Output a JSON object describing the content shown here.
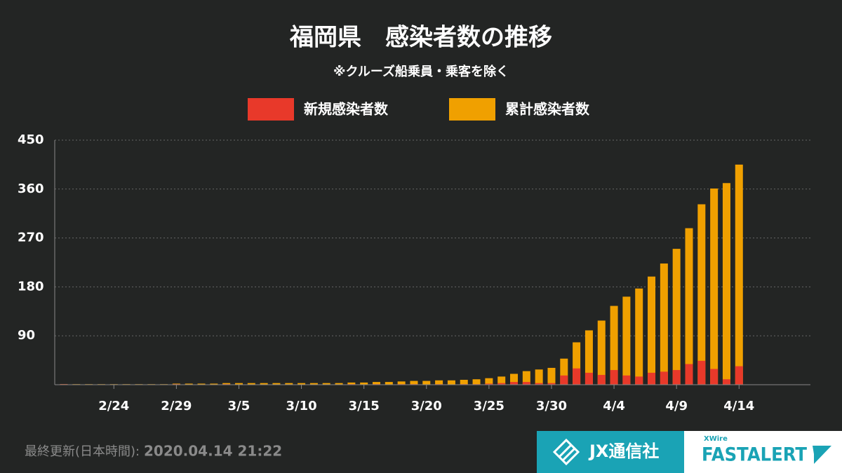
{
  "chart_data": {
    "type": "bar",
    "title": "福岡県　感染者数の推移",
    "subtitle": "※クルーズ船乗員・乗客を除く",
    "categories": [
      null,
      null,
      null,
      null,
      "2/24",
      null,
      null,
      null,
      null,
      "2/29",
      null,
      null,
      null,
      null,
      "3/5",
      null,
      null,
      null,
      null,
      "3/10",
      null,
      null,
      null,
      null,
      "3/15",
      null,
      null,
      null,
      null,
      "3/20",
      null,
      null,
      null,
      null,
      "3/25",
      null,
      null,
      null,
      null,
      "3/30",
      null,
      null,
      null,
      null,
      "4/4",
      null,
      null,
      null,
      null,
      "4/9",
      null,
      null,
      null,
      null,
      "4/14"
    ],
    "series": [
      {
        "name": "新規感染者数",
        "color": "#e8392a",
        "values": [
          1,
          0,
          0,
          0,
          0,
          0,
          0,
          0,
          0,
          1,
          0,
          0,
          0,
          1,
          0,
          0,
          0,
          0,
          0,
          0,
          0,
          0,
          0,
          1,
          0,
          1,
          0,
          1,
          1,
          0,
          1,
          0,
          1,
          1,
          2,
          3,
          5,
          5,
          3,
          3,
          17,
          30,
          22,
          18,
          27,
          17,
          15,
          22,
          24,
          27,
          38,
          44,
          29,
          10,
          34
        ]
      },
      {
        "name": "累計感染者数",
        "color": "#f0a000",
        "values": [
          1,
          1,
          1,
          1,
          1,
          1,
          1,
          1,
          1,
          2,
          2,
          2,
          2,
          3,
          3,
          3,
          3,
          3,
          3,
          3,
          3,
          3,
          3,
          4,
          4,
          5,
          5,
          6,
          7,
          7,
          8,
          8,
          9,
          10,
          12,
          15,
          20,
          25,
          28,
          31,
          48,
          78,
          100,
          118,
          145,
          162,
          177,
          199,
          223,
          250,
          288,
          332,
          361,
          371,
          405
        ]
      }
    ],
    "ylim": [
      0,
      450
    ],
    "yticks": [
      90,
      180,
      270,
      360,
      450
    ],
    "grid": true
  },
  "footer": {
    "updated_label": "最終更新(日本時間):",
    "updated": "2020.04.14 21:22"
  },
  "logos": {
    "jx": "JX通信社",
    "xwire": "XWire",
    "fastalert": "FASTALERT"
  }
}
